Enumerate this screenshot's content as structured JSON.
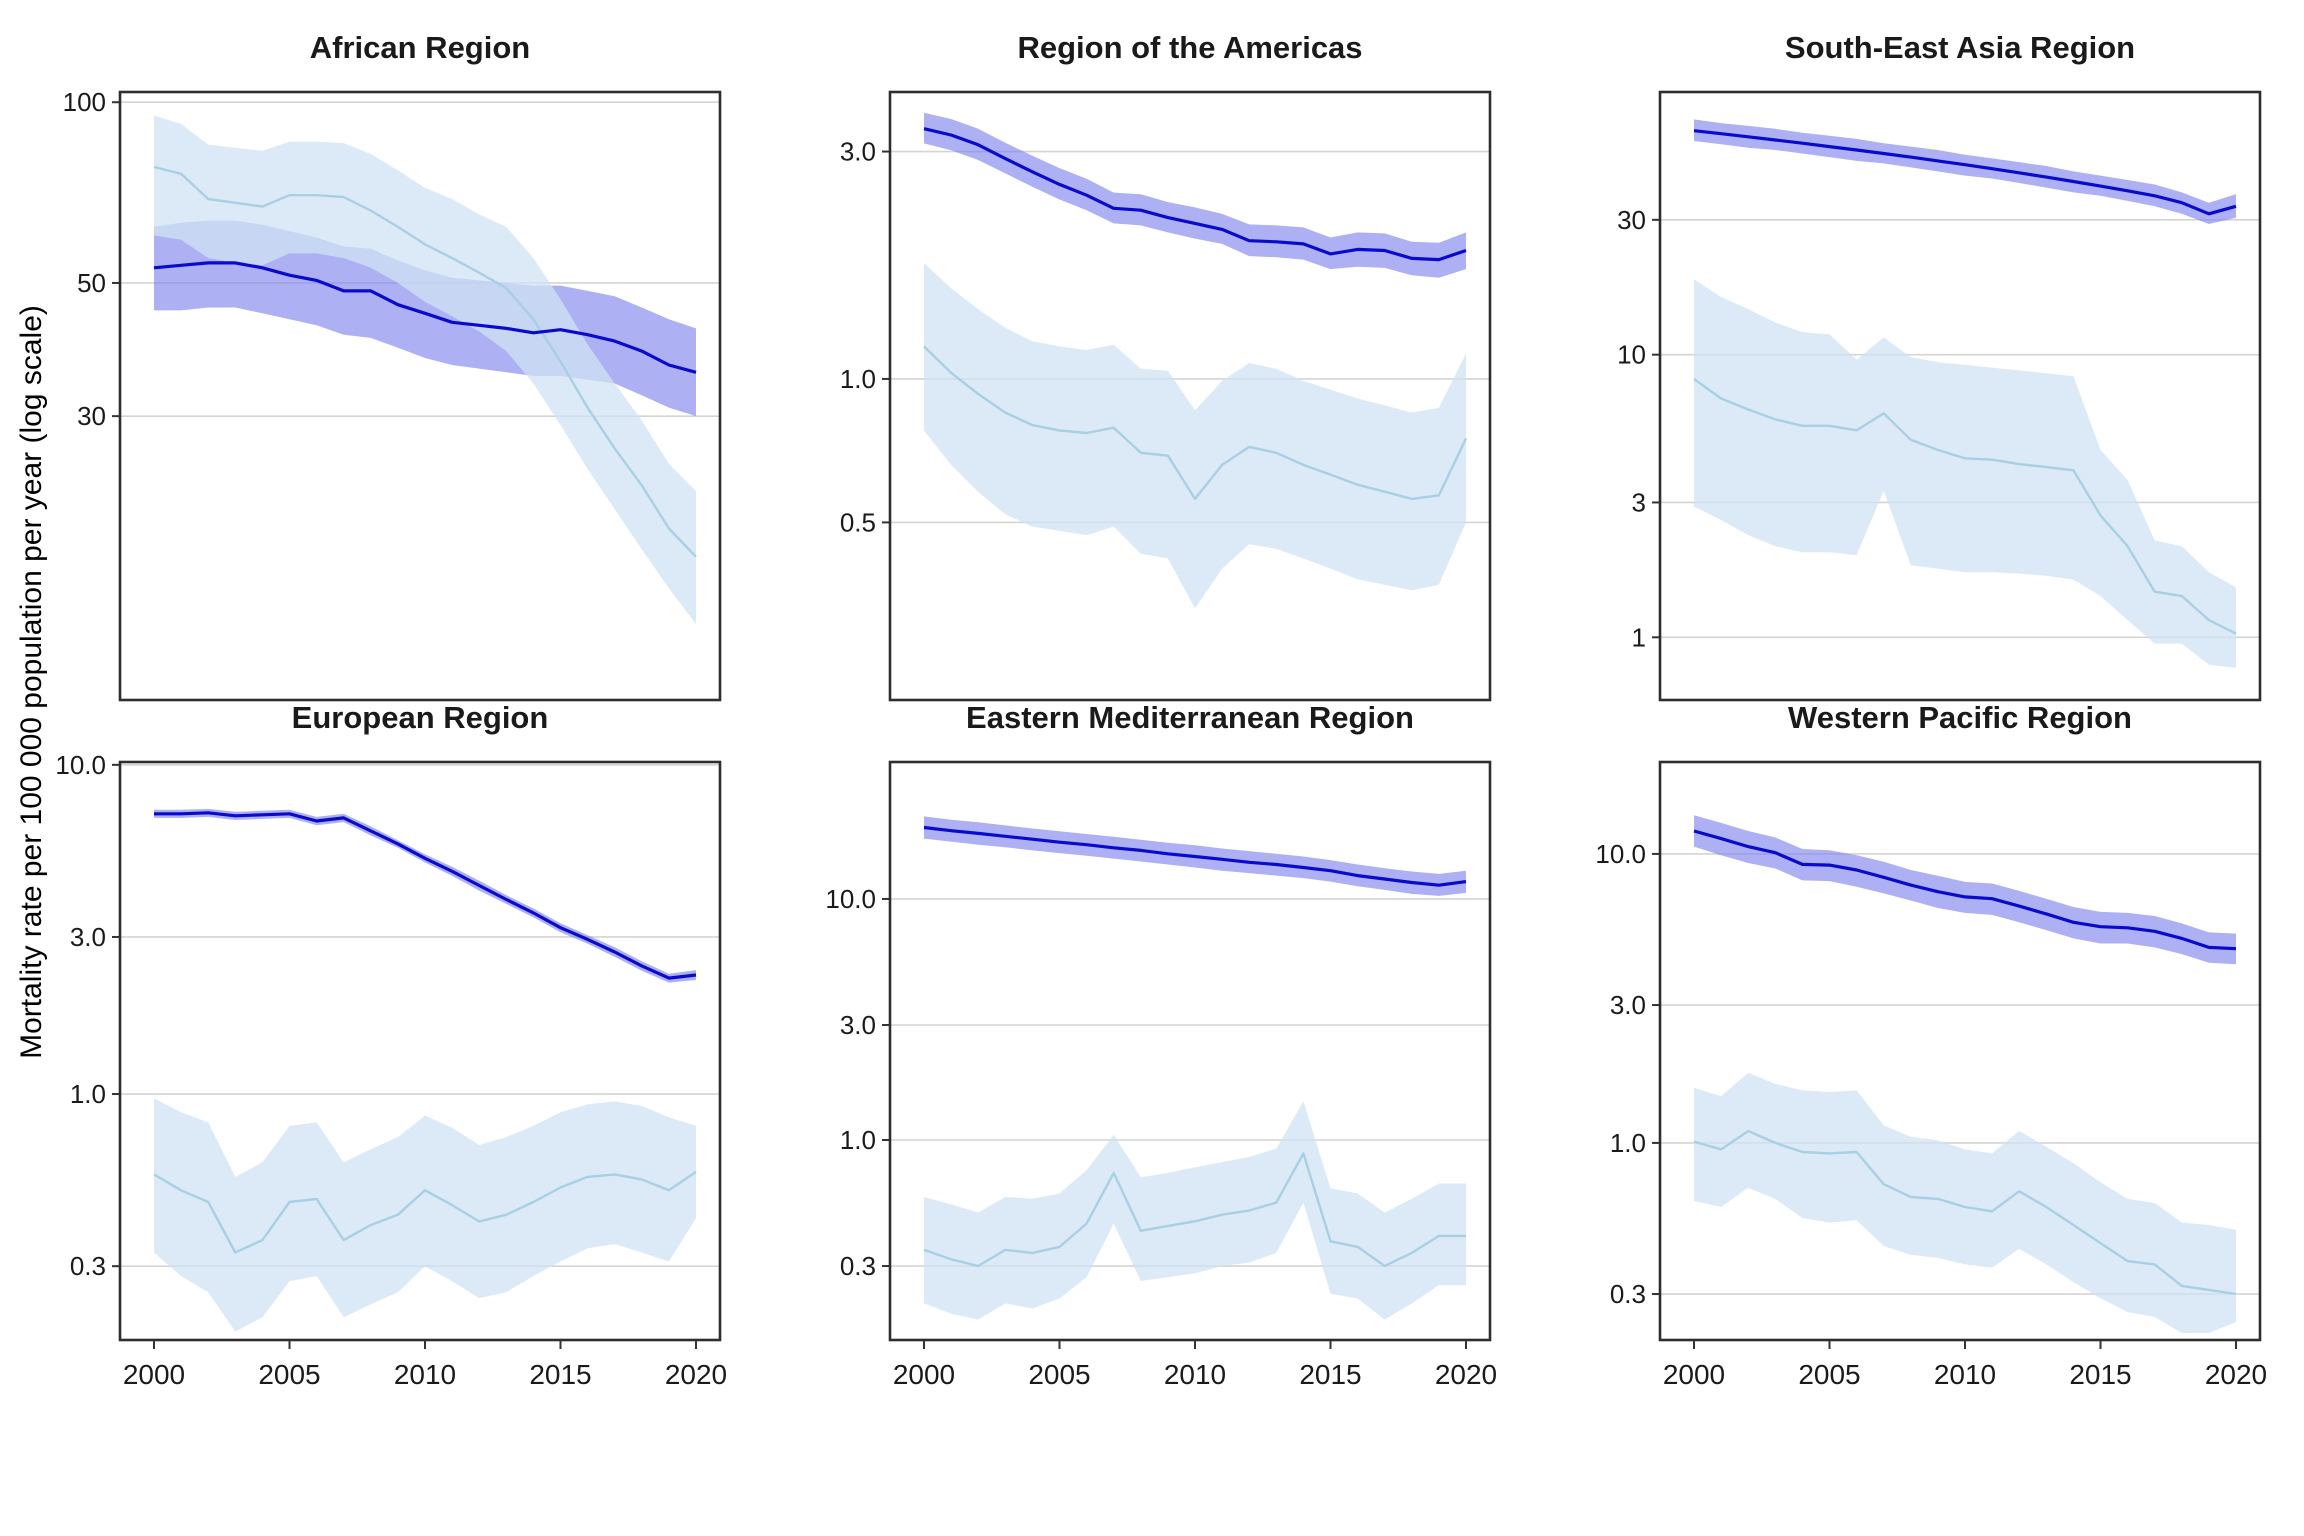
{
  "chart_data": {
    "type": "line+ribbon",
    "ylabel": "Mortality rate per 100 000 population per year (log scale)",
    "log_scale_y": true,
    "grid": "horizontal-only",
    "legend": "none",
    "x": [
      2000,
      2001,
      2002,
      2003,
      2004,
      2005,
      2006,
      2007,
      2008,
      2009,
      2010,
      2011,
      2012,
      2013,
      2014,
      2015,
      2016,
      2017,
      2018,
      2019,
      2020
    ],
    "x_ticks": [
      2000,
      2005,
      2010,
      2015,
      2020
    ],
    "x_tick_labels": [
      "2000",
      "2005",
      "2010",
      "2015",
      "2020"
    ],
    "colors": {
      "dark_blue_line": "#0a0acd",
      "dark_blue_ribbon": "#7b80ea",
      "light_blue_line": "#a9cfe4",
      "light_blue_ribbon": "#cfe3f3",
      "gridline": "#d4d4d4",
      "panel_border": "#2e2e2e",
      "text": "#1a1a1a"
    },
    "series_legend": [
      {
        "id": "dark_blue",
        "color": "#0a0acd",
        "ribbon": "#7b80ea"
      },
      {
        "id": "light_blue",
        "color": "#a9cfe4",
        "ribbon": "#cfe3f3"
      }
    ],
    "panels": [
      {
        "title": "African Region",
        "ylim": [
          10.1,
          104
        ],
        "y_ticks": [
          {
            "v": 100,
            "label": "100"
          },
          {
            "v": 50,
            "label": "50"
          },
          {
            "v": 30,
            "label": "30"
          }
        ],
        "dark": {
          "line": [
            53,
            53.5,
            54,
            54,
            53,
            51.5,
            50.5,
            48.5,
            48.5,
            46,
            44.5,
            43,
            42.5,
            42,
            41.3,
            41.8,
            41,
            40,
            38.5,
            36.5,
            35.5
          ],
          "lo": [
            45,
            45,
            45.5,
            45.5,
            44.5,
            43.5,
            42.5,
            41,
            40.5,
            39,
            37.5,
            36.5,
            36,
            35.5,
            35,
            35,
            34.5,
            34,
            32.5,
            31,
            30
          ],
          "hi": [
            62,
            63,
            63.5,
            63.5,
            62.5,
            61,
            59.5,
            57.5,
            57,
            54.5,
            52.5,
            51,
            50.5,
            50,
            49.5,
            49.5,
            48.5,
            47.5,
            45.5,
            43.5,
            42
          ]
        },
        "light": {
          "line": [
            78,
            76,
            69,
            68,
            67,
            70,
            70,
            69.5,
            66,
            62,
            58,
            55,
            52,
            49,
            43.5,
            37,
            31,
            26.5,
            23,
            19.5,
            17.5
          ],
          "lo": [
            60,
            59,
            55,
            54,
            53.5,
            56,
            56,
            55,
            53,
            50,
            46.5,
            44,
            41.5,
            38.5,
            34,
            29,
            24.5,
            21,
            18,
            15.5,
            13.5
          ],
          "hi": [
            95,
            92,
            85,
            84,
            83,
            86,
            86,
            85.5,
            82,
            77,
            72,
            69,
            65,
            62,
            55,
            47,
            39.5,
            34,
            29.5,
            25,
            22.5
          ]
        }
      },
      {
        "title": "Region of the Americas",
        "ylim": [
          0.212,
          4.0
        ],
        "y_ticks": [
          {
            "v": 3,
            "label": "3.0"
          },
          {
            "v": 1,
            "label": "1.0"
          },
          {
            "v": 0.5,
            "label": "0.5"
          }
        ],
        "dark": {
          "line": [
            3.35,
            3.25,
            3.1,
            2.9,
            2.72,
            2.56,
            2.43,
            2.28,
            2.26,
            2.18,
            2.12,
            2.06,
            1.95,
            1.94,
            1.92,
            1.83,
            1.87,
            1.86,
            1.79,
            1.78,
            1.86
          ],
          "lo": [
            3.12,
            3.02,
            2.88,
            2.7,
            2.53,
            2.38,
            2.26,
            2.12,
            2.1,
            2.03,
            1.97,
            1.92,
            1.81,
            1.8,
            1.78,
            1.7,
            1.72,
            1.71,
            1.65,
            1.63,
            1.7
          ],
          "hi": [
            3.62,
            3.51,
            3.35,
            3.13,
            2.94,
            2.77,
            2.63,
            2.46,
            2.44,
            2.35,
            2.29,
            2.22,
            2.11,
            2.1,
            2.08,
            1.98,
            2.03,
            2.02,
            1.94,
            1.93,
            2.03
          ]
        },
        "light": {
          "line": [
            1.17,
            1.03,
            0.93,
            0.85,
            0.8,
            0.78,
            0.77,
            0.79,
            0.7,
            0.69,
            0.56,
            0.66,
            0.72,
            0.7,
            0.66,
            0.63,
            0.6,
            0.58,
            0.56,
            0.57,
            0.75
          ],
          "lo": [
            0.78,
            0.66,
            0.58,
            0.52,
            0.49,
            0.48,
            0.47,
            0.49,
            0.43,
            0.42,
            0.33,
            0.4,
            0.45,
            0.44,
            0.42,
            0.4,
            0.38,
            0.37,
            0.36,
            0.37,
            0.5
          ],
          "hi": [
            1.75,
            1.55,
            1.4,
            1.28,
            1.2,
            1.17,
            1.15,
            1.18,
            1.05,
            1.04,
            0.86,
            0.99,
            1.08,
            1.05,
            0.99,
            0.95,
            0.91,
            0.88,
            0.85,
            0.87,
            1.13
          ]
        }
      },
      {
        "title": "South-East Asia Region",
        "ylim": [
          0.6,
          85
        ],
        "y_ticks": [
          {
            "v": 30,
            "label": "30"
          },
          {
            "v": 10,
            "label": "10"
          },
          {
            "v": 3,
            "label": "3"
          },
          {
            "v": 1,
            "label": "1"
          }
        ],
        "dark": {
          "line": [
            62,
            60.5,
            59,
            57.5,
            56,
            54.5,
            53,
            51.5,
            50,
            48.5,
            47,
            45.5,
            44,
            42.5,
            41,
            39.5,
            38,
            36.5,
            34.5,
            31.5,
            33.5
          ],
          "lo": [
            57,
            55.5,
            54,
            53,
            51.5,
            50,
            48.5,
            47.5,
            46,
            44.5,
            43,
            42,
            40.5,
            39,
            37.5,
            36.5,
            35,
            33.5,
            31.5,
            29,
            30.5
          ],
          "hi": [
            68,
            66,
            64.5,
            63,
            61,
            59.5,
            58,
            56,
            54.5,
            53,
            51,
            49.5,
            48,
            46.5,
            44.5,
            43,
            41.5,
            40,
            37.5,
            34.5,
            37
          ]
        },
        "light": {
          "line": [
            8.2,
            7,
            6.4,
            5.9,
            5.6,
            5.6,
            5.4,
            6.2,
            5,
            4.6,
            4.3,
            4.25,
            4.1,
            4,
            3.9,
            2.7,
            2.1,
            1.45,
            1.4,
            1.15,
            1.03
          ],
          "lo": [
            2.9,
            2.6,
            2.3,
            2.1,
            2,
            2,
            1.95,
            3.3,
            1.8,
            1.75,
            1.7,
            1.7,
            1.68,
            1.65,
            1.6,
            1.4,
            1.15,
            0.95,
            0.95,
            0.8,
            0.78
          ],
          "hi": [
            18.5,
            16,
            14.5,
            13,
            12,
            11.8,
            9.6,
            11.5,
            9.8,
            9.4,
            9.2,
            9,
            8.8,
            8.6,
            8.4,
            4.6,
            3.6,
            2.2,
            2.1,
            1.7,
            1.5
          ]
        }
      },
      {
        "title": "European Region",
        "ylim": [
          0.179,
          10.2
        ],
        "y_ticks": [
          {
            "v": 10,
            "label": "10.0"
          },
          {
            "v": 3,
            "label": "3.0"
          },
          {
            "v": 1,
            "label": "1.0"
          },
          {
            "v": 0.3,
            "label": "0.3"
          }
        ],
        "dark": {
          "line": [
            7.1,
            7.1,
            7.15,
            7,
            7.05,
            7.1,
            6.75,
            6.9,
            6.3,
            5.75,
            5.2,
            4.75,
            4.3,
            3.9,
            3.55,
            3.2,
            2.95,
            2.7,
            2.45,
            2.25,
            2.3
          ],
          "lo": [
            6.9,
            6.9,
            6.95,
            6.8,
            6.85,
            6.9,
            6.55,
            6.7,
            6.1,
            5.6,
            5.05,
            4.6,
            4.15,
            3.78,
            3.44,
            3.1,
            2.86,
            2.61,
            2.37,
            2.18,
            2.22
          ],
          "hi": [
            7.3,
            7.3,
            7.35,
            7.2,
            7.25,
            7.3,
            6.95,
            7.1,
            6.5,
            5.9,
            5.35,
            4.9,
            4.45,
            4.02,
            3.66,
            3.3,
            3.04,
            2.79,
            2.53,
            2.32,
            2.38
          ]
        },
        "light": {
          "line": [
            0.57,
            0.51,
            0.47,
            0.33,
            0.36,
            0.47,
            0.48,
            0.36,
            0.4,
            0.43,
            0.51,
            0.46,
            0.41,
            0.43,
            0.47,
            0.52,
            0.56,
            0.57,
            0.55,
            0.51,
            0.58
          ],
          "lo": [
            0.33,
            0.28,
            0.25,
            0.19,
            0.21,
            0.27,
            0.28,
            0.21,
            0.23,
            0.25,
            0.3,
            0.27,
            0.24,
            0.25,
            0.28,
            0.31,
            0.34,
            0.35,
            0.33,
            0.31,
            0.42
          ],
          "hi": [
            0.97,
            0.88,
            0.82,
            0.56,
            0.62,
            0.8,
            0.82,
            0.62,
            0.68,
            0.74,
            0.86,
            0.79,
            0.7,
            0.74,
            0.8,
            0.88,
            0.93,
            0.95,
            0.92,
            0.85,
            0.8
          ]
        }
      },
      {
        "title": "Eastern Mediterranean Region",
        "ylim": [
          0.148,
          37
        ],
        "y_ticks": [
          {
            "v": 10,
            "label": "10.0"
          },
          {
            "v": 3,
            "label": "3.0"
          },
          {
            "v": 1,
            "label": "1.0"
          },
          {
            "v": 0.3,
            "label": "0.3"
          }
        ],
        "dark": {
          "line": [
            19.8,
            19.2,
            18.7,
            18.2,
            17.7,
            17.2,
            16.8,
            16.3,
            15.9,
            15.4,
            15,
            14.6,
            14.2,
            13.9,
            13.5,
            13.1,
            12.5,
            12.1,
            11.7,
            11.4,
            11.8
          ],
          "lo": [
            17.8,
            17.3,
            16.8,
            16.4,
            15.9,
            15.5,
            15.1,
            14.7,
            14.3,
            13.9,
            13.5,
            13.1,
            12.8,
            12.5,
            12.2,
            11.8,
            11.3,
            10.9,
            10.5,
            10.3,
            10.6
          ],
          "hi": [
            22,
            21.3,
            20.8,
            20.2,
            19.6,
            19.1,
            18.6,
            18.1,
            17.6,
            17.1,
            16.7,
            16.2,
            15.8,
            15.4,
            15,
            14.5,
            13.9,
            13.4,
            13,
            12.7,
            13.1
          ]
        },
        "light": {
          "line": [
            0.35,
            0.32,
            0.3,
            0.35,
            0.34,
            0.36,
            0.45,
            0.73,
            0.42,
            0.44,
            0.46,
            0.49,
            0.51,
            0.55,
            0.88,
            0.38,
            0.36,
            0.3,
            0.34,
            0.4,
            0.4
          ],
          "lo": [
            0.21,
            0.19,
            0.18,
            0.21,
            0.2,
            0.22,
            0.27,
            0.45,
            0.26,
            0.27,
            0.28,
            0.3,
            0.31,
            0.34,
            0.55,
            0.23,
            0.22,
            0.18,
            0.21,
            0.25,
            0.25
          ],
          "hi": [
            0.58,
            0.54,
            0.5,
            0.58,
            0.57,
            0.6,
            0.75,
            1.05,
            0.7,
            0.73,
            0.77,
            0.81,
            0.85,
            0.92,
            1.45,
            0.63,
            0.6,
            0.5,
            0.57,
            0.66,
            0.66
          ]
        }
      },
      {
        "title": "Western Pacific Region",
        "ylim": [
          0.208,
          20.8
        ],
        "y_ticks": [
          {
            "v": 10,
            "label": "10.0"
          },
          {
            "v": 3,
            "label": "3.0"
          },
          {
            "v": 1,
            "label": "1.0"
          },
          {
            "v": 0.3,
            "label": "0.3"
          }
        ],
        "dark": {
          "line": [
            12,
            11.3,
            10.6,
            10.1,
            9.2,
            9.15,
            8.8,
            8.3,
            7.8,
            7.4,
            7.1,
            7,
            6.6,
            6.2,
            5.8,
            5.6,
            5.55,
            5.4,
            5.1,
            4.75,
            4.7
          ],
          "lo": [
            10.6,
            9.9,
            9.3,
            8.9,
            8.1,
            8.05,
            7.7,
            7.3,
            6.9,
            6.5,
            6.25,
            6.15,
            5.8,
            5.45,
            5.1,
            4.9,
            4.9,
            4.75,
            4.5,
            4.2,
            4.15
          ],
          "hi": [
            13.6,
            12.8,
            12,
            11.4,
            10.4,
            10.3,
            9.9,
            9.4,
            8.8,
            8.4,
            8,
            7.9,
            7.45,
            7,
            6.55,
            6.3,
            6.25,
            6.1,
            5.75,
            5.35,
            5.3
          ]
        },
        "light": {
          "line": [
            1.01,
            0.95,
            1.1,
            1,
            0.93,
            0.92,
            0.93,
            0.72,
            0.65,
            0.64,
            0.6,
            0.58,
            0.68,
            0.6,
            0.52,
            0.45,
            0.39,
            0.38,
            0.32,
            0.31,
            0.3
          ],
          "lo": [
            0.63,
            0.6,
            0.7,
            0.64,
            0.55,
            0.53,
            0.54,
            0.44,
            0.41,
            0.4,
            0.38,
            0.37,
            0.43,
            0.38,
            0.33,
            0.29,
            0.26,
            0.25,
            0.22,
            0.22,
            0.24
          ],
          "hi": [
            1.55,
            1.45,
            1.75,
            1.6,
            1.52,
            1.5,
            1.52,
            1.15,
            1.05,
            1.02,
            0.95,
            0.92,
            1.1,
            0.97,
            0.85,
            0.73,
            0.64,
            0.62,
            0.53,
            0.52,
            0.5
          ]
        }
      }
    ]
  }
}
